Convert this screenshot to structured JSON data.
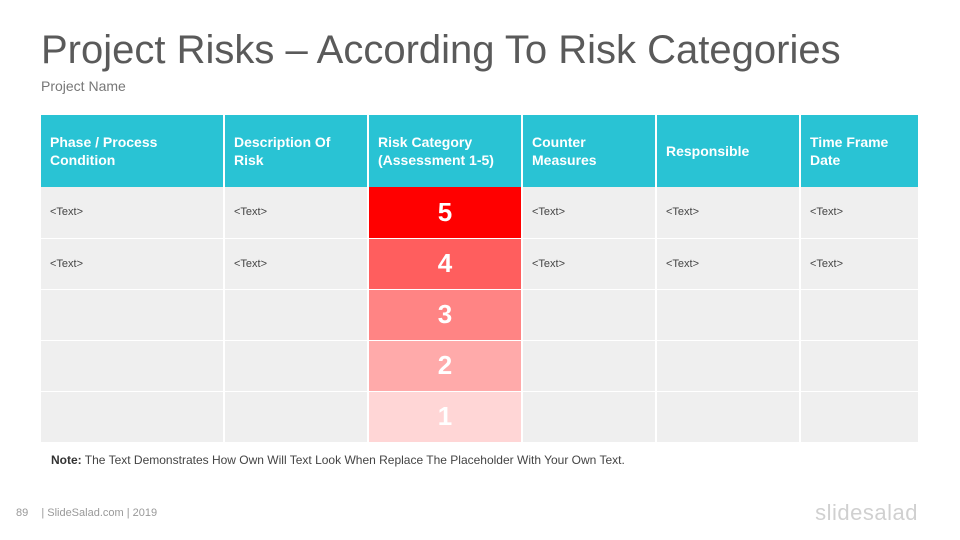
{
  "slide": {
    "title": "Project Risks – According To Risk Categories",
    "subtitle": "Project Name"
  },
  "table": {
    "headers": [
      "Phase / Process Condition",
      "Description Of Risk",
      "Risk Category (Assessment 1-5)",
      "Counter Measures",
      "Responsible",
      "Time Frame Date"
    ],
    "rows": [
      {
        "phase": "<Text>",
        "description": "<Text>",
        "score": "5",
        "score_color": "#ff0000",
        "counter": "<Text>",
        "responsible": "<Text>",
        "timeframe": "<Text>"
      },
      {
        "phase": "<Text>",
        "description": "<Text>",
        "score": "4",
        "score_color": "#ff5e5e",
        "counter": "<Text>",
        "responsible": "<Text>",
        "timeframe": "<Text>"
      },
      {
        "phase": "",
        "description": "",
        "score": "3",
        "score_color": "#ff8484",
        "counter": "",
        "responsible": "",
        "timeframe": ""
      },
      {
        "phase": "",
        "description": "",
        "score": "2",
        "score_color": "#ffaaaa",
        "counter": "",
        "responsible": "",
        "timeframe": ""
      },
      {
        "phase": "",
        "description": "",
        "score": "1",
        "score_color": "#ffd6d6",
        "counter": "",
        "responsible": "",
        "timeframe": ""
      }
    ]
  },
  "note": {
    "label": "Note:",
    "text": " The Text Demonstrates How Own Will Text Look When Replace The Placeholder With Your Own Text."
  },
  "footer": {
    "page_number": "89",
    "source": "| SlideSalad.com | 2019",
    "brand": "slidesalad"
  },
  "colors": {
    "header_bg": "#29c3d4",
    "cell_bg": "#efefef"
  }
}
